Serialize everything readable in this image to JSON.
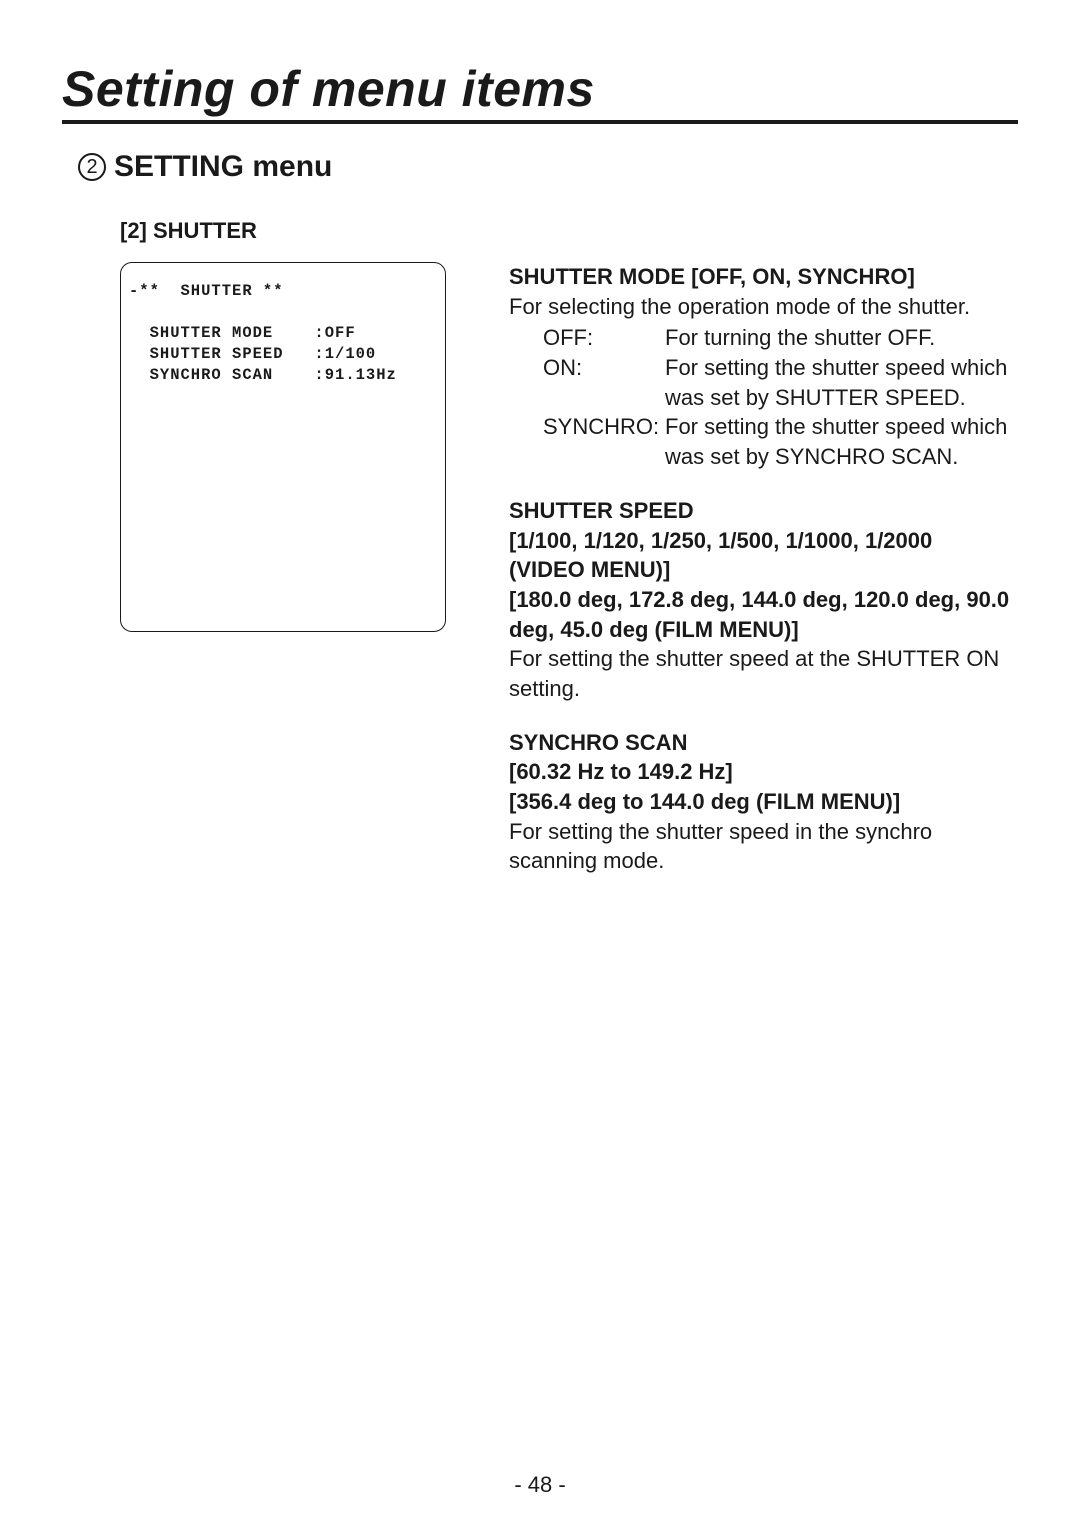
{
  "title": "Setting of menu items",
  "subtitle_number": "2",
  "subtitle_text": "SETTING menu",
  "section_head": "[2] SHUTTER",
  "menu_box_text": "-**  SHUTTER **\n\n  SHUTTER MODE    :OFF\n  SHUTTER SPEED   :1/100\n  SYNCHRO SCAN    :91.13Hz",
  "shutter_mode": {
    "heading": "SHUTTER MODE [OFF, ON, SYNCHRO]",
    "intro": "For selecting the operation mode of the shutter.",
    "options": [
      {
        "key": "OFF:",
        "val": "For turning the shutter OFF."
      },
      {
        "key": "ON:",
        "val": "For setting the shutter speed which was set by SHUTTER SPEED."
      },
      {
        "key": "SYNCHRO:",
        "val": "For setting the shutter speed which was set by SYNCHRO SCAN."
      }
    ]
  },
  "shutter_speed": {
    "heading_l1": "SHUTTER SPEED",
    "heading_l2": "[1/100, 1/120, 1/250, 1/500, 1/1000, 1/2000 (VIDEO MENU)]",
    "heading_l3": "[180.0 deg, 172.8 deg, 144.0 deg, 120.0 deg, 90.0 deg, 45.0 deg (FILM MENU)]",
    "body": "For setting the shutter speed at the SHUTTER ON setting."
  },
  "synchro_scan": {
    "heading_l1": "SYNCHRO SCAN",
    "heading_l2": "[60.32 Hz to 149.2 Hz]",
    "heading_l3": "[356.4 deg to 144.0 deg (FILM MENU)]",
    "body": "For setting the shutter speed in the synchro scanning mode."
  },
  "page_number": "- 48 -"
}
